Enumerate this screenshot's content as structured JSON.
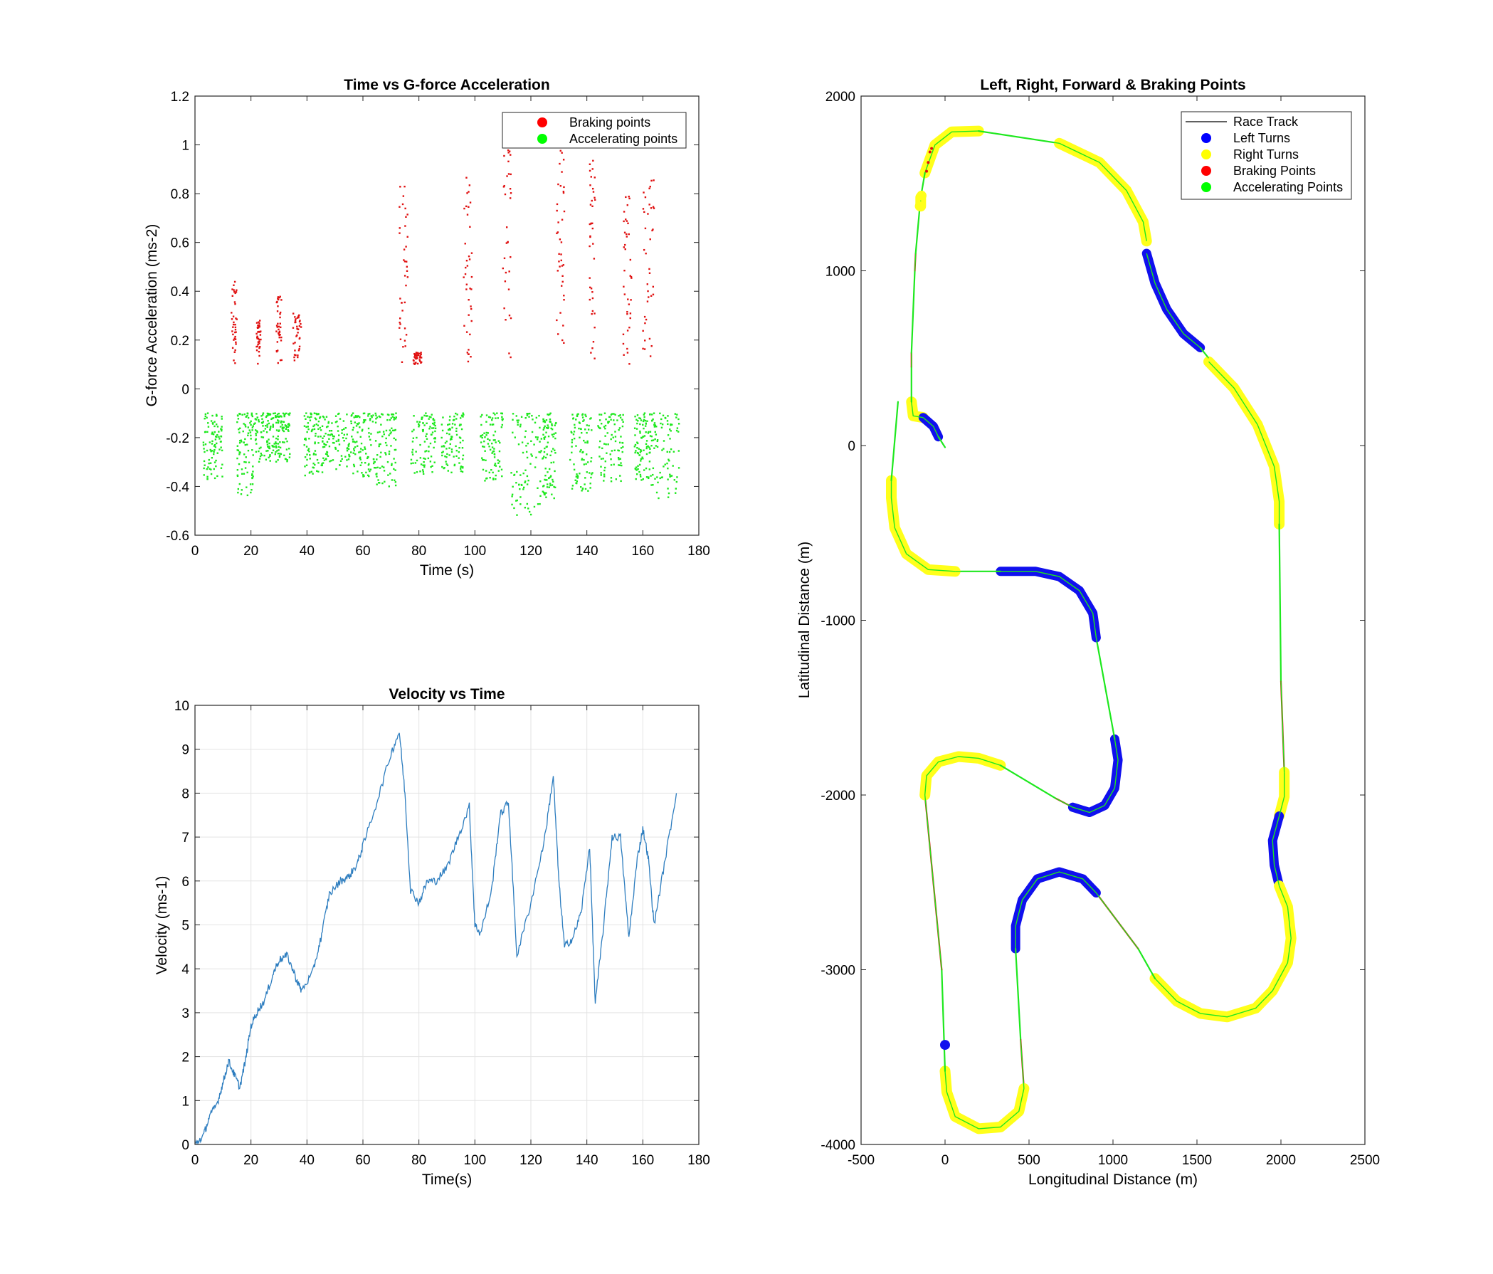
{
  "chart_data": [
    {
      "id": "g",
      "type": "scatter",
      "title": "Time vs G-force Acceleration",
      "xlabel": "Time (s)",
      "ylabel": "G-force Acceleration (ms-2)",
      "xlim": [
        0,
        180
      ],
      "ylim": [
        -0.6,
        1.2
      ],
      "xticks": [
        0,
        20,
        40,
        60,
        80,
        100,
        120,
        140,
        160,
        180
      ],
      "yticks": [
        -0.6,
        -0.4,
        -0.2,
        0,
        0.2,
        0.4,
        0.6,
        0.8,
        1,
        1.2
      ],
      "ytick_labels": [
        "-0.6",
        "-0.4",
        "-0.2",
        "0",
        "0.2",
        "0.4",
        "0.6",
        "0.8",
        "1",
        "1.2"
      ],
      "grid": false,
      "legend_position": "top-right",
      "braking_clusters": [
        {
          "x": [
            13,
            15
          ],
          "ymax": 0.44
        },
        {
          "x": [
            22,
            23.5
          ],
          "ymax": 0.28
        },
        {
          "x": [
            29,
            31
          ],
          "ymax": 0.38
        },
        {
          "x": [
            35,
            38
          ],
          "ymax": 0.31
        },
        {
          "x": [
            73,
            76
          ],
          "ymax": 0.84
        },
        {
          "x": [
            78,
            81
          ],
          "ymax": 0.15
        },
        {
          "x": [
            96,
            99
          ],
          "ymax": 0.88
        },
        {
          "x": [
            110,
            113
          ],
          "ymax": 1.11
        },
        {
          "x": [
            129,
            132
          ],
          "ymax": 1.0
        },
        {
          "x": [
            141,
            143
          ],
          "ymax": 0.98
        },
        {
          "x": [
            153,
            156
          ],
          "ymax": 0.85
        },
        {
          "x": [
            160,
            164
          ],
          "ymax": 0.88
        }
      ],
      "accel_clusters": [
        {
          "x": [
            3,
            10
          ],
          "ymin": -0.38
        },
        {
          "x": [
            15,
            21
          ],
          "ymin": -0.45
        },
        {
          "x": [
            21,
            28
          ],
          "ymin": -0.3
        },
        {
          "x": [
            28,
            34
          ],
          "ymin": -0.3
        },
        {
          "x": [
            39,
            46
          ],
          "ymin": -0.36
        },
        {
          "x": [
            46,
            56
          ],
          "ymin": -0.33
        },
        {
          "x": [
            56,
            64
          ],
          "ymin": -0.36
        },
        {
          "x": [
            64,
            72
          ],
          "ymin": -0.4
        },
        {
          "x": [
            77,
            86
          ],
          "ymin": -0.35
        },
        {
          "x": [
            88,
            96
          ],
          "ymin": -0.35
        },
        {
          "x": [
            102,
            110
          ],
          "ymin": -0.38
        },
        {
          "x": [
            113,
            124
          ],
          "ymin": -0.52
        },
        {
          "x": [
            124,
            129
          ],
          "ymin": -0.45
        },
        {
          "x": [
            134,
            142
          ],
          "ymin": -0.42
        },
        {
          "x": [
            144,
            153
          ],
          "ymin": -0.38
        },
        {
          "x": [
            157,
            163
          ],
          "ymin": -0.38
        },
        {
          "x": [
            163,
            173
          ],
          "ymin": -0.45
        }
      ],
      "legend": [
        {
          "label": "Braking points",
          "color": "#ff0000"
        },
        {
          "label": "Accelerating points",
          "color": "#00ff00"
        }
      ]
    },
    {
      "id": "v",
      "type": "line",
      "title": "Velocity vs Time",
      "xlabel": "Time(s)",
      "ylabel": "Velocity (ms-1)",
      "xlim": [
        0,
        180
      ],
      "ylim": [
        0,
        10
      ],
      "xticks": [
        0,
        20,
        40,
        60,
        80,
        100,
        120,
        140,
        160,
        180
      ],
      "yticks": [
        0,
        1,
        2,
        3,
        4,
        5,
        6,
        7,
        8,
        9,
        10
      ],
      "grid": true,
      "color": "#2d7dbf",
      "series": [
        {
          "x": [
            0,
            3,
            5,
            8,
            10,
            12,
            14,
            16,
            18,
            20,
            22,
            25,
            28,
            30,
            33,
            36,
            38,
            42,
            45,
            48,
            52,
            55,
            58,
            60,
            65,
            70,
            73,
            75,
            77,
            80,
            83,
            86,
            90,
            94,
            98,
            100,
            102,
            106,
            109,
            112,
            115,
            120,
            125,
            128,
            130,
            132,
            135,
            138,
            141,
            143,
            146,
            149,
            152,
            155,
            158,
            160,
            162,
            164,
            168,
            172
          ],
          "y": [
            0,
            0.2,
            0.6,
            0.95,
            1.4,
            1.9,
            1.6,
            1.3,
            1.9,
            2.7,
            3.0,
            3.3,
            3.9,
            4.2,
            4.3,
            3.8,
            3.5,
            3.9,
            4.7,
            5.7,
            6.0,
            6.1,
            6.4,
            6.8,
            7.8,
            8.9,
            9.4,
            8.0,
            5.8,
            5.5,
            6.0,
            6.0,
            6.3,
            7.0,
            7.7,
            5.0,
            4.8,
            5.8,
            7.5,
            7.8,
            4.3,
            5.5,
            7.0,
            8.4,
            6.0,
            4.5,
            4.7,
            5.3,
            6.8,
            3.2,
            5.0,
            7.0,
            7.0,
            4.7,
            6.5,
            7.2,
            6.5,
            5.0,
            6.5,
            8.0
          ]
        }
      ]
    },
    {
      "id": "t",
      "type": "line",
      "title": "Left, Right, Forward & Braking Points",
      "xlabel": "Longitudinal Distance (m)",
      "ylabel": "Latitudinal Distance (m)",
      "xlim": [
        -500,
        2500
      ],
      "ylim": [
        -4000,
        2000
      ],
      "xticks": [
        -500,
        0,
        500,
        1000,
        1500,
        2000,
        2500
      ],
      "yticks": [
        -4000,
        -3000,
        -2000,
        -1000,
        0,
        1000,
        2000
      ],
      "grid": false,
      "legend_position": "top-right",
      "segments": [
        {
          "kind": "right",
          "pts": [
            [
              -120,
              1560
            ],
            [
              -60,
              1720
            ],
            [
              40,
              1795
            ],
            [
              200,
              1800
            ]
          ]
        },
        {
          "kind": "accel",
          "pts": [
            [
              200,
              1800
            ],
            [
              680,
              1730
            ]
          ]
        },
        {
          "kind": "right",
          "pts": [
            [
              680,
              1730
            ],
            [
              920,
              1620
            ],
            [
              1080,
              1460
            ],
            [
              1180,
              1280
            ],
            [
              1200,
              1170
            ]
          ]
        },
        {
          "kind": "left",
          "pts": [
            [
              1200,
              1100
            ],
            [
              1250,
              930
            ],
            [
              1320,
              780
            ],
            [
              1420,
              640
            ],
            [
              1520,
              560
            ]
          ]
        },
        {
          "kind": "accel",
          "pts": [
            [
              1520,
              560
            ],
            [
              1570,
              500
            ]
          ]
        },
        {
          "kind": "right",
          "pts": [
            [
              1570,
              480
            ],
            [
              1720,
              330
            ],
            [
              1860,
              120
            ],
            [
              1960,
              -120
            ],
            [
              1990,
              -320
            ],
            [
              1990,
              -450
            ]
          ]
        },
        {
          "kind": "accel",
          "pts": [
            [
              1990,
              -450
            ],
            [
              2000,
              -1350
            ]
          ]
        },
        {
          "kind": "brake",
          "pts": [
            [
              2000,
              -1350
            ],
            [
              2020,
              -1870
            ]
          ]
        },
        {
          "kind": "right",
          "pts": [
            [
              2020,
              -1870
            ],
            [
              2020,
              -2010
            ],
            [
              1990,
              -2120
            ]
          ]
        },
        {
          "kind": "left",
          "pts": [
            [
              1990,
              -2120
            ],
            [
              1950,
              -2260
            ],
            [
              1960,
              -2400
            ],
            [
              1990,
              -2520
            ]
          ]
        },
        {
          "kind": "right",
          "pts": [
            [
              1990,
              -2520
            ],
            [
              2040,
              -2640
            ],
            [
              2060,
              -2820
            ],
            [
              2040,
              -2960
            ],
            [
              1950,
              -3120
            ],
            [
              1850,
              -3220
            ],
            [
              1680,
              -3270
            ],
            [
              1520,
              -3250
            ],
            [
              1380,
              -3180
            ],
            [
              1250,
              -3050
            ]
          ]
        },
        {
          "kind": "accel",
          "pts": [
            [
              1250,
              -3050
            ],
            [
              1150,
              -2880
            ]
          ]
        },
        {
          "kind": "brake",
          "pts": [
            [
              1150,
              -2880
            ],
            [
              900,
              -2560
            ]
          ]
        },
        {
          "kind": "left",
          "pts": [
            [
              900,
              -2560
            ],
            [
              820,
              -2480
            ],
            [
              680,
              -2440
            ],
            [
              550,
              -2480
            ],
            [
              460,
              -2600
            ],
            [
              420,
              -2750
            ],
            [
              420,
              -2880
            ]
          ]
        },
        {
          "kind": "accel",
          "pts": [
            [
              420,
              -2880
            ],
            [
              450,
              -3400
            ]
          ]
        },
        {
          "kind": "brake",
          "pts": [
            [
              450,
              -3400
            ],
            [
              470,
              -3680
            ]
          ]
        },
        {
          "kind": "right",
          "pts": [
            [
              470,
              -3680
            ],
            [
              440,
              -3810
            ],
            [
              330,
              -3900
            ],
            [
              200,
              -3910
            ],
            [
              60,
              -3840
            ],
            [
              10,
              -3700
            ],
            [
              0,
              -3580
            ]
          ]
        },
        {
          "kind": "accel",
          "pts": [
            [
              0,
              -3580
            ],
            [
              -20,
              -3000
            ]
          ]
        },
        {
          "kind": "brake",
          "pts": [
            [
              -20,
              -3000
            ],
            [
              -120,
              -2000
            ]
          ]
        },
        {
          "kind": "right",
          "pts": [
            [
              -120,
              -2000
            ],
            [
              -110,
              -1890
            ],
            [
              -40,
              -1810
            ],
            [
              80,
              -1780
            ],
            [
              200,
              -1790
            ],
            [
              330,
              -1830
            ]
          ]
        },
        {
          "kind": "accel",
          "pts": [
            [
              330,
              -1830
            ],
            [
              660,
              -2020
            ]
          ]
        },
        {
          "kind": "brake",
          "pts": [
            [
              660,
              -2020
            ],
            [
              760,
              -2070
            ]
          ]
        },
        {
          "kind": "left",
          "pts": [
            [
              760,
              -2070
            ],
            [
              860,
              -2100
            ],
            [
              950,
              -2060
            ],
            [
              1010,
              -1960
            ],
            [
              1030,
              -1800
            ],
            [
              1010,
              -1680
            ]
          ]
        },
        {
          "kind": "accel",
          "pts": [
            [
              1010,
              -1680
            ],
            [
              900,
              -1100
            ]
          ]
        },
        {
          "kind": "left",
          "pts": [
            [
              900,
              -1100
            ],
            [
              880,
              -960
            ],
            [
              800,
              -830
            ],
            [
              680,
              -750
            ],
            [
              540,
              -720
            ],
            [
              330,
              -720
            ]
          ]
        },
        {
          "kind": "accel",
          "pts": [
            [
              330,
              -720
            ],
            [
              60,
              -720
            ]
          ]
        },
        {
          "kind": "right",
          "pts": [
            [
              60,
              -720
            ],
            [
              -100,
              -710
            ],
            [
              -230,
              -620
            ],
            [
              -300,
              -470
            ],
            [
              -320,
              -300
            ],
            [
              -320,
              -200
            ]
          ]
        },
        {
          "kind": "accel",
          "pts": [
            [
              -320,
              -200
            ],
            [
              -280,
              250
            ]
          ]
        },
        {
          "kind": "right",
          "pts": [
            [
              -200,
              250
            ],
            [
              -190,
              170
            ],
            [
              -130,
              160
            ]
          ]
        },
        {
          "kind": "left",
          "pts": [
            [
              -130,
              160
            ],
            [
              -70,
              110
            ],
            [
              -40,
              50
            ]
          ]
        },
        {
          "kind": "accel",
          "pts": [
            [
              -40,
              50
            ],
            [
              0,
              -10
            ]
          ]
        },
        {
          "kind": "accel",
          "pts": [
            [
              -200,
              250
            ],
            [
              -200,
              450
            ]
          ]
        },
        {
          "kind": "brake",
          "pts": [
            [
              -200,
              450
            ],
            [
              -200,
              530
            ]
          ]
        },
        {
          "kind": "accel",
          "pts": [
            [
              -200,
              530
            ],
            [
              -180,
              1000
            ]
          ]
        },
        {
          "kind": "brake",
          "pts": [
            [
              -180,
              1000
            ],
            [
              -175,
              1100
            ]
          ]
        },
        {
          "kind": "accel",
          "pts": [
            [
              -175,
              1100
            ],
            [
              -150,
              1370
            ]
          ]
        },
        {
          "kind": "right",
          "pts": [
            [
              -145,
              1370
            ],
            [
              -145,
              1420
            ]
          ]
        },
        {
          "kind": "accel",
          "pts": [
            [
              -145,
              1420
            ],
            [
              -120,
              1560
            ]
          ]
        }
      ],
      "brake_marks": [
        [
          -110,
          1570
        ],
        [
          -100,
          1620
        ],
        [
          -90,
          1680
        ],
        [
          -80,
          1700
        ]
      ],
      "legend": [
        {
          "label": "Race Track",
          "color": "#000000",
          "marker": "line"
        },
        {
          "label": "Left Turns",
          "color": "#0000ff",
          "marker": "dot"
        },
        {
          "label": "Right Turns",
          "color": "#ffff00",
          "marker": "dot"
        },
        {
          "label": "Braking Points",
          "color": "#ff0000",
          "marker": "dot"
        },
        {
          "label": "Accelerating Points",
          "color": "#00ff00",
          "marker": "dot"
        }
      ]
    }
  ]
}
